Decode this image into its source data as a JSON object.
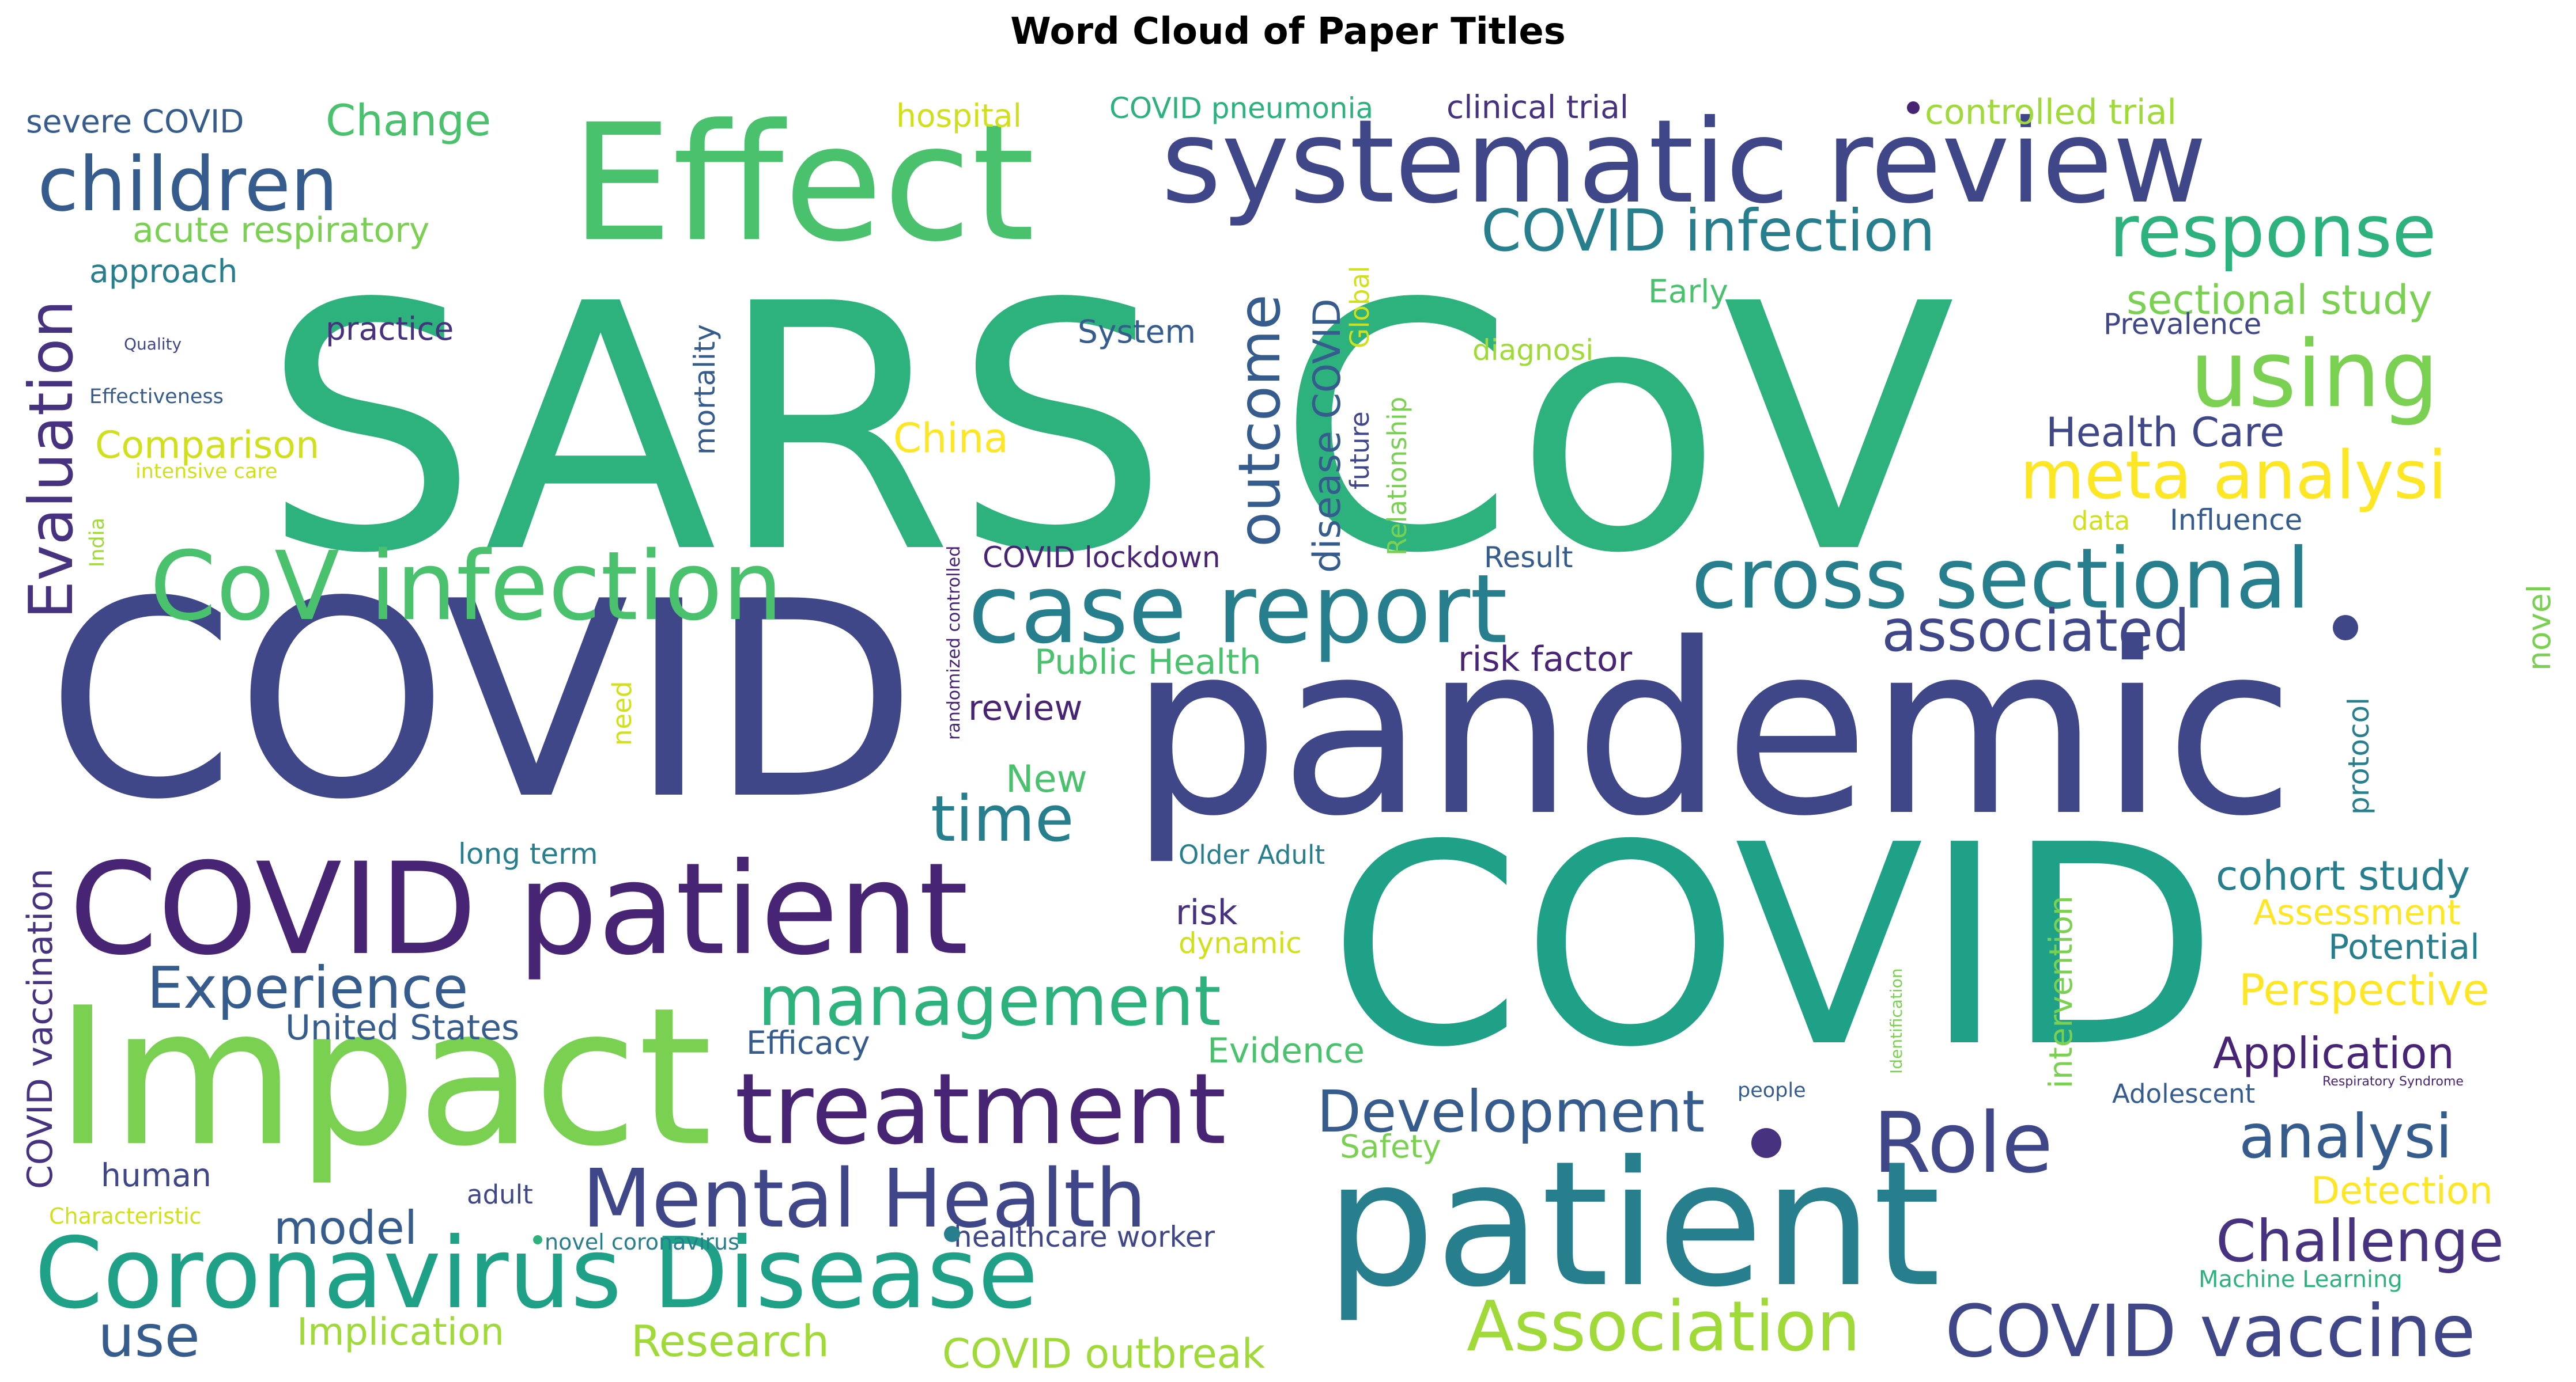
{
  "title": "Word Cloud of Paper Titles",
  "palette": {
    "darkpurple": "#482475",
    "purple": "#46327e",
    "indigo": "#3f4788",
    "blue": "#365c8d",
    "teal": "#277f8e",
    "green": "#1fa187",
    "mint": "#2db27d",
    "lightgreen": "#4ac16d",
    "lime": "#7ad151",
    "yellowgreen": "#a0da39",
    "yellow": "#d0e11c",
    "brightyellow": "#fde725"
  },
  "words": [
    {
      "text": "SARS CoV",
      "color": "mint"
    },
    {
      "text": "COVID",
      "color": "indigo"
    },
    {
      "text": "pandemic",
      "color": "indigo"
    },
    {
      "text": "COVID",
      "color": "green"
    },
    {
      "text": "patient",
      "color": "teal"
    },
    {
      "text": "Impact",
      "color": "lime"
    },
    {
      "text": "Effect",
      "color": "lightgreen"
    },
    {
      "text": "systematic review",
      "color": "indigo"
    },
    {
      "text": "COVID patient",
      "color": "darkpurple"
    },
    {
      "text": "Coronavirus Disease",
      "color": "green"
    },
    {
      "text": "CoV infection",
      "color": "lightgreen"
    },
    {
      "text": "case report",
      "color": "teal"
    },
    {
      "text": "cross sectional",
      "color": "teal"
    },
    {
      "text": "children",
      "color": "blue"
    },
    {
      "text": "treatment",
      "color": "darkpurple"
    },
    {
      "text": "Mental Health",
      "color": "indigo"
    },
    {
      "text": "management",
      "color": "mint"
    },
    {
      "text": "Role",
      "color": "indigo"
    },
    {
      "text": "response",
      "color": "mint"
    },
    {
      "text": "using",
      "color": "lime"
    },
    {
      "text": "meta analysi",
      "color": "brightyellow"
    },
    {
      "text": "COVID infection",
      "color": "teal"
    },
    {
      "text": "COVID vaccine",
      "color": "indigo"
    },
    {
      "text": "Association",
      "color": "yellowgreen"
    },
    {
      "text": "analysi",
      "color": "blue"
    },
    {
      "text": "associated",
      "color": "indigo"
    },
    {
      "text": "Development",
      "color": "blue"
    },
    {
      "text": "Experience",
      "color": "blue"
    },
    {
      "text": "Challenge",
      "color": "purple"
    },
    {
      "text": "time",
      "color": "teal"
    },
    {
      "text": "Evaluation",
      "color": "purple"
    },
    {
      "text": "outcome",
      "color": "blue"
    },
    {
      "text": "cohort study",
      "color": "teal"
    },
    {
      "text": "sectional study",
      "color": "lime"
    },
    {
      "text": "Application",
      "color": "darkpurple"
    },
    {
      "text": "Perspective",
      "color": "brightyellow"
    },
    {
      "text": "Health Care",
      "color": "indigo"
    },
    {
      "text": "use",
      "color": "blue"
    },
    {
      "text": "model",
      "color": "blue"
    },
    {
      "text": "Research",
      "color": "yellowgreen"
    },
    {
      "text": "COVID outbreak",
      "color": "yellowgreen"
    },
    {
      "text": "Implication",
      "color": "yellowgreen"
    },
    {
      "text": "Change",
      "color": "lightgreen"
    },
    {
      "text": "acute respiratory",
      "color": "lime"
    },
    {
      "text": "Comparison",
      "color": "yellow"
    },
    {
      "text": "China",
      "color": "brightyellow"
    },
    {
      "text": "disease COVID",
      "color": "blue"
    },
    {
      "text": "COVID vaccination",
      "color": "purple"
    },
    {
      "text": "Public Health",
      "color": "lightgreen"
    },
    {
      "text": "risk factor",
      "color": "darkpurple"
    },
    {
      "text": "review",
      "color": "darkpurple"
    },
    {
      "text": "New",
      "color": "lightgreen"
    },
    {
      "text": "United States",
      "color": "blue"
    },
    {
      "text": "Efficacy",
      "color": "blue"
    },
    {
      "text": "Evidence",
      "color": "lightgreen"
    },
    {
      "text": "risk",
      "color": "purple"
    },
    {
      "text": "dynamic",
      "color": "yellow"
    },
    {
      "text": "Safety",
      "color": "lime"
    },
    {
      "text": "Detection",
      "color": "brightyellow"
    },
    {
      "text": "Assessment",
      "color": "brightyellow"
    },
    {
      "text": "Potential",
      "color": "teal"
    },
    {
      "text": "Adolescent",
      "color": "blue"
    },
    {
      "text": "human",
      "color": "indigo"
    },
    {
      "text": "adult",
      "color": "indigo"
    },
    {
      "text": "healthcare worker",
      "color": "indigo"
    },
    {
      "text": "novel coronavirus",
      "color": "teal"
    },
    {
      "text": "Characteristic",
      "color": "yellow"
    },
    {
      "text": "Machine Learning",
      "color": "mint"
    },
    {
      "text": "Respiratory Syndrome",
      "color": "darkpurple"
    },
    {
      "text": "people",
      "color": "blue"
    },
    {
      "text": "Identification",
      "color": "lime"
    },
    {
      "text": "intervention",
      "color": "lime"
    },
    {
      "text": "Older Adult",
      "color": "teal"
    },
    {
      "text": "long term",
      "color": "teal"
    },
    {
      "text": "need",
      "color": "yellow"
    },
    {
      "text": "randomized controlled",
      "color": "darkpurple"
    },
    {
      "text": "COVID lockdown",
      "color": "darkpurple"
    },
    {
      "text": "Result",
      "color": "blue"
    },
    {
      "text": "data",
      "color": "yellow"
    },
    {
      "text": "Influence",
      "color": "blue"
    },
    {
      "text": "protocol",
      "color": "teal"
    },
    {
      "text": "novel",
      "color": "lime"
    },
    {
      "text": "Prevalence",
      "color": "indigo"
    },
    {
      "text": "Early",
      "color": "lightgreen"
    },
    {
      "text": "diagnosi",
      "color": "yellowgreen"
    },
    {
      "text": "System",
      "color": "blue"
    },
    {
      "text": "practice",
      "color": "purple"
    },
    {
      "text": "approach",
      "color": "teal"
    },
    {
      "text": "mortality",
      "color": "blue"
    },
    {
      "text": "Global",
      "color": "yellow"
    },
    {
      "text": "Relationship",
      "color": "lime"
    },
    {
      "text": "future",
      "color": "indigo"
    },
    {
      "text": "severe COVID",
      "color": "blue"
    },
    {
      "text": "hospital",
      "color": "yellow"
    },
    {
      "text": "COVID pneumonia",
      "color": "mint"
    },
    {
      "text": "clinical trial",
      "color": "purple"
    },
    {
      "text": "controlled trial",
      "color": "yellowgreen"
    },
    {
      "text": "Quality",
      "color": "indigo"
    },
    {
      "text": "Effectiveness",
      "color": "blue"
    },
    {
      "text": "intensive care",
      "color": "yellow"
    },
    {
      "text": "India",
      "color": "yellowgreen"
    }
  ]
}
